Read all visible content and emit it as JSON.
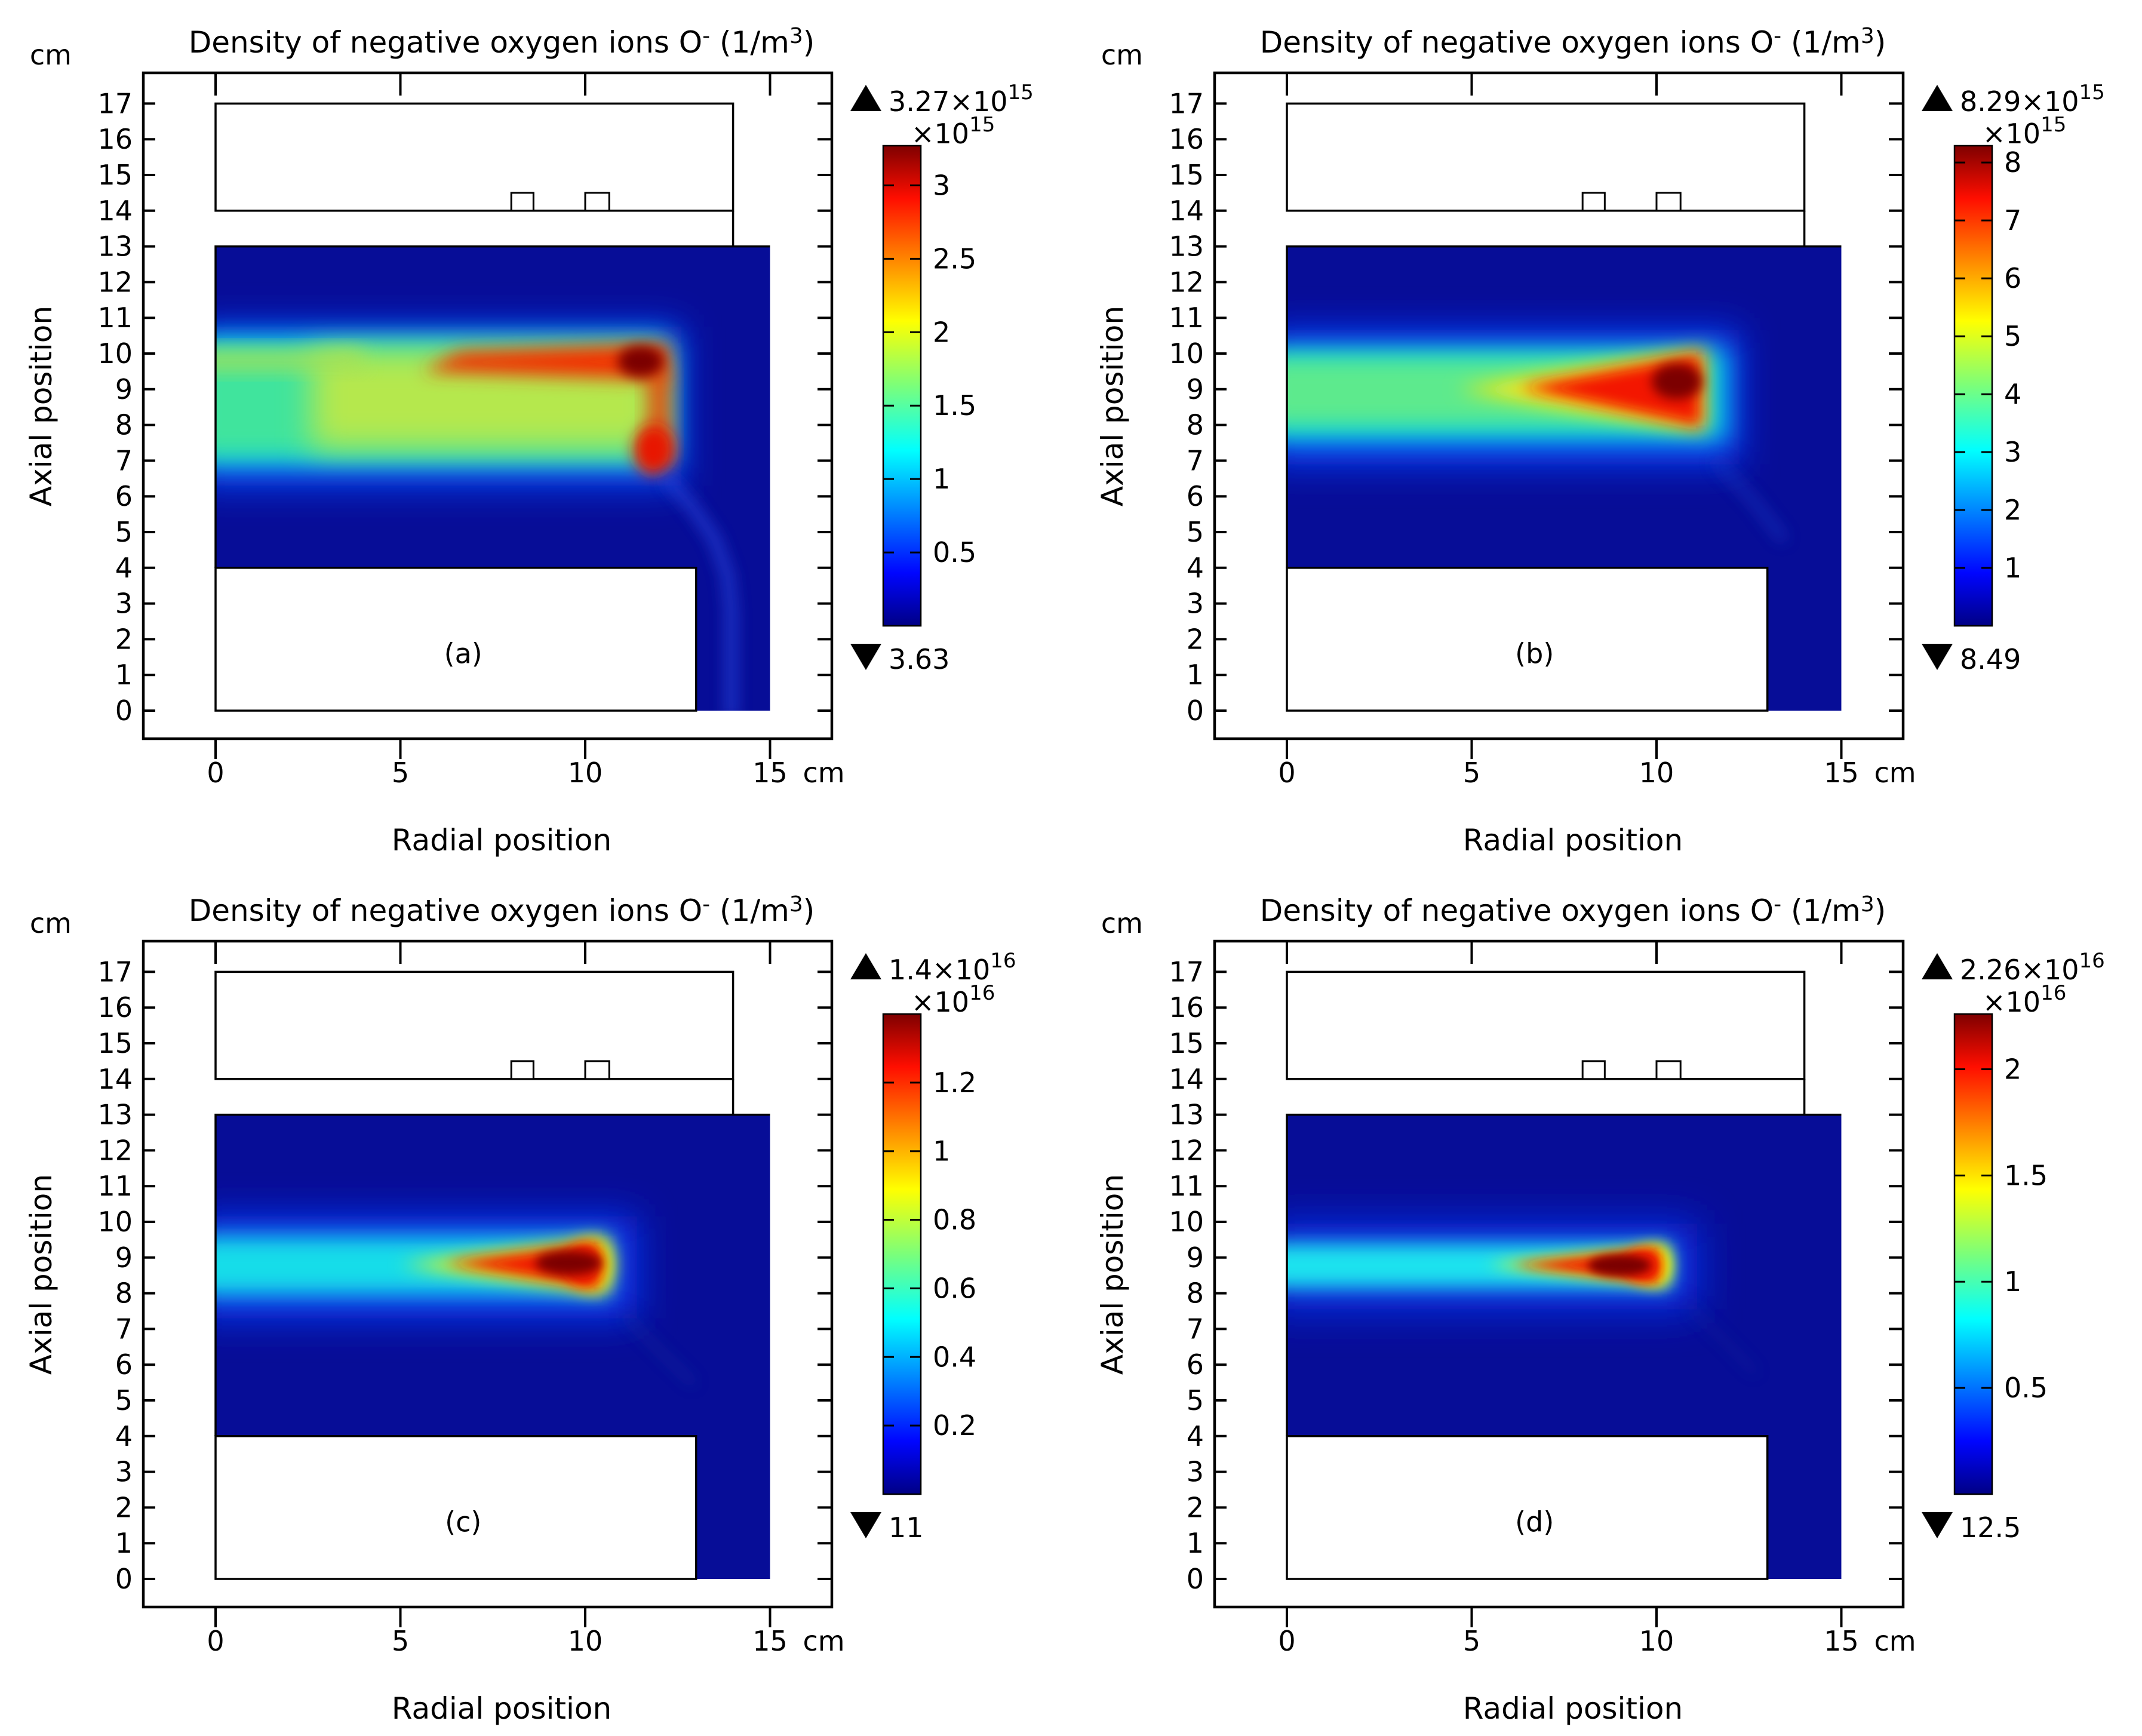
{
  "chart_data": {
    "type": "heatmap",
    "figure_kind": "2x2 panel COMSOL simulation surface plots",
    "shared": {
      "title_parts": [
        {
          "t": "Density of negative oxygen ions O"
        },
        {
          "t": "-",
          "sup": true
        },
        {
          "t": " (1/m"
        },
        {
          "t": "3",
          "sup": true
        },
        {
          "t": ")"
        }
      ],
      "xlabel": "Radial position",
      "ylabel": "Axial position",
      "x_unit": "cm",
      "y_unit": "cm",
      "x_ticks": [
        {
          "v": 0,
          "t": "0"
        },
        {
          "v": 5,
          "t": "5"
        },
        {
          "v": 10,
          "t": "10"
        },
        {
          "v": 15,
          "t": "15"
        }
      ],
      "y_ticks": [
        {
          "v": 0,
          "t": "0"
        },
        {
          "v": 1,
          "t": "1"
        },
        {
          "v": 2,
          "t": "2"
        },
        {
          "v": 3,
          "t": "3"
        },
        {
          "v": 4,
          "t": "4"
        },
        {
          "v": 5,
          "t": "5"
        },
        {
          "v": 6,
          "t": "6"
        },
        {
          "v": 7,
          "t": "7"
        },
        {
          "v": 8,
          "t": "8"
        },
        {
          "v": 9,
          "t": "9"
        },
        {
          "v": 10,
          "t": "10"
        },
        {
          "v": 11,
          "t": "11"
        },
        {
          "v": 12,
          "t": "12"
        },
        {
          "v": 13,
          "t": "13"
        },
        {
          "v": 14,
          "t": "14"
        },
        {
          "v": 15,
          "t": "15"
        },
        {
          "v": 16,
          "t": "16"
        },
        {
          "v": 17,
          "t": "17"
        }
      ],
      "x_range_cm": [
        0,
        15
      ],
      "y_range_cm": [
        0,
        17
      ],
      "grid": false,
      "base_color": "#070d97",
      "geometry": {
        "heatmap_region": {
          "x": [
            0,
            15
          ],
          "y": [
            0,
            13
          ]
        },
        "substrate_block": {
          "x": [
            0,
            13
          ],
          "y": [
            0,
            4
          ]
        },
        "chamber_box": {
          "x": [
            0,
            14
          ],
          "y": [
            14,
            17
          ]
        },
        "electrode_blocks": [
          {
            "x": [
              8.0,
              8.6
            ],
            "y": [
              14,
              14.5
            ]
          },
          {
            "x": [
              10.0,
              10.65
            ],
            "y": [
              14,
              14.5
            ]
          }
        ],
        "wall_segment": {
          "x": 14,
          "y": [
            13,
            14
          ]
        }
      },
      "colormap_stops": [
        [
          0,
          "#000085"
        ],
        [
          0.11,
          "#0005ff"
        ],
        [
          0.365,
          "#00ffff"
        ],
        [
          0.5,
          "#7bff7a"
        ],
        [
          0.635,
          "#ffff00"
        ],
        [
          0.89,
          "#ff0e00"
        ],
        [
          1,
          "#7f0000"
        ]
      ]
    },
    "panels": [
      {
        "id": "a",
        "letter": "(a)",
        "letter_pos_cm": [
          6.7,
          1.6
        ],
        "colorbar": {
          "max_marker": "triangle-up",
          "max_mantissa": "3.27×10",
          "max_exp": "15",
          "scale_mantissa": "×10",
          "scale_exp": "15",
          "min_marker": "triangle-down",
          "min_label": "3.63",
          "bar_max_value": 3.27,
          "ticks": [
            {
              "v": 0.5,
              "t": "0.5"
            },
            {
              "v": 1,
              "t": "1"
            },
            {
              "v": 1.5,
              "t": "1.5"
            },
            {
              "v": 2,
              "t": "2"
            },
            {
              "v": 2.5,
              "t": "2.5"
            },
            {
              "v": 3,
              "t": "3"
            }
          ]
        },
        "plume": [
          {
            "sh": "rect",
            "x1": -0.6,
            "y1": 6.3,
            "x2": 12.6,
            "y2": 10.75,
            "fill": "#0a45f5",
            "blur": 0.5
          },
          {
            "sh": "rect",
            "x1": -0.6,
            "y1": 6.9,
            "x2": 12.35,
            "y2": 10.45,
            "fill": "#00c8f0",
            "blur": 0.36
          },
          {
            "sh": "rect",
            "x1": -0.6,
            "y1": 7.1,
            "x2": 12.15,
            "y2": 10.2,
            "fill": "#3fe49d",
            "blur": 0.32
          },
          {
            "sh": "rect",
            "x1": 2.6,
            "y1": 7.35,
            "x2": 12.0,
            "y2": 10.05,
            "fill": "#b5e84e",
            "blur": 0.42
          },
          {
            "sh": "rect",
            "x1": -0.6,
            "y1": 9.55,
            "x2": 4.0,
            "y2": 10.1,
            "fill": "#a9e153",
            "blur": 0.28,
            "op": 0.9
          },
          {
            "sh": "poly",
            "pts": [
              [
                5.6,
                9.5
              ],
              [
                12.25,
                9.25
              ],
              [
                12.3,
                10.3
              ],
              [
                6.6,
                10.05
              ]
            ],
            "fill": "#f33000",
            "blur": 0.24
          },
          {
            "sh": "rect",
            "x1": 11.7,
            "y1": 7.0,
            "x2": 12.3,
            "y2": 9.6,
            "fill": "#f34400",
            "blur": 0.26,
            "op": 0.95
          },
          {
            "sh": "ellipse",
            "cx": 11.85,
            "cy": 7.3,
            "rx": 0.55,
            "ry": 0.7,
            "fill": "#e81500",
            "blur": 0.2
          },
          {
            "sh": "ellipse",
            "cx": 11.5,
            "cy": 9.78,
            "rx": 0.62,
            "ry": 0.44,
            "fill": "#7c0000",
            "blur": 0.17
          },
          {
            "sh": "line",
            "pts": [
              [
                12.25,
                6.45
              ],
              [
                12.9,
                5.7
              ],
              [
                13.5,
                4.8
              ],
              [
                13.85,
                3.8
              ],
              [
                13.95,
                2.8
              ],
              [
                13.95,
                -0.1
              ]
            ],
            "w": 0.28,
            "fill": "#2644dc",
            "blur": 0.2,
            "op": 0.8
          }
        ]
      },
      {
        "id": "b",
        "letter": "(b)",
        "letter_pos_cm": [
          6.7,
          1.6
        ],
        "colorbar": {
          "max_marker": "triangle-up",
          "max_mantissa": "8.29×10",
          "max_exp": "15",
          "scale_mantissa": "×10",
          "scale_exp": "15",
          "min_marker": "triangle-down",
          "min_label": "8.49",
          "bar_max_value": 8.29,
          "ticks": [
            {
              "v": 1,
              "t": "1"
            },
            {
              "v": 2,
              "t": "2"
            },
            {
              "v": 3,
              "t": "3"
            },
            {
              "v": 4,
              "t": "4"
            },
            {
              "v": 5,
              "t": "5"
            },
            {
              "v": 6,
              "t": "6"
            },
            {
              "v": 7,
              "t": "7"
            },
            {
              "v": 8,
              "t": "8"
            }
          ]
        },
        "plume": [
          {
            "sh": "rect",
            "x1": -0.6,
            "y1": 6.9,
            "x2": 12.25,
            "y2": 10.65,
            "fill": "#0a3cf5",
            "blur": 0.5
          },
          {
            "sh": "rect",
            "x1": -0.6,
            "y1": 7.55,
            "x2": 11.9,
            "y2": 10.15,
            "fill": "#00d2e4",
            "blur": 0.34
          },
          {
            "sh": "rect",
            "x1": -0.6,
            "y1": 7.95,
            "x2": 10.9,
            "y2": 9.9,
            "fill": "#5dea8d",
            "blur": 0.3
          },
          {
            "sh": "poly",
            "pts": [
              [
                4.6,
                9.0
              ],
              [
                11.35,
                7.8
              ],
              [
                11.35,
                10.15
              ]
            ],
            "fill": "#ffe80a",
            "blur": 0.26
          },
          {
            "sh": "poly",
            "pts": [
              [
                6.3,
                9.05
              ],
              [
                11.2,
                7.95
              ],
              [
                11.2,
                10.0
              ]
            ],
            "fill": "#f31400",
            "blur": 0.2
          },
          {
            "sh": "ellipse",
            "cx": 10.55,
            "cy": 9.22,
            "rx": 0.68,
            "ry": 0.5,
            "fill": "#7c0000",
            "blur": 0.16
          },
          {
            "sh": "line",
            "pts": [
              [
                11.65,
                6.95
              ],
              [
                12.6,
                5.9
              ],
              [
                13.4,
                4.85
              ]
            ],
            "w": 0.24,
            "fill": "#1d3ac4",
            "blur": 0.2,
            "op": 0.6
          }
        ]
      },
      {
        "id": "c",
        "letter": "(c)",
        "letter_pos_cm": [
          6.7,
          1.6
        ],
        "colorbar": {
          "max_marker": "triangle-up",
          "max_mantissa": "1.4×10",
          "max_exp": "16",
          "scale_mantissa": "×10",
          "scale_exp": "16",
          "min_marker": "triangle-down",
          "min_label": "11",
          "bar_max_value": 1.4,
          "ticks": [
            {
              "v": 0.2,
              "t": "0.2"
            },
            {
              "v": 0.4,
              "t": "0.4"
            },
            {
              "v": 0.6,
              "t": "0.6"
            },
            {
              "v": 0.8,
              "t": "0.8"
            },
            {
              "v": 1,
              "t": "1"
            },
            {
              "v": 1.2,
              "t": "1.2"
            }
          ]
        },
        "plume": [
          {
            "sh": "rect",
            "x1": -0.6,
            "y1": 7.3,
            "x2": 11.4,
            "y2": 10.15,
            "fill": "#0a38f0",
            "blur": 0.5
          },
          {
            "sh": "rect",
            "x1": -0.6,
            "y1": 7.95,
            "x2": 10.65,
            "y2": 9.6,
            "fill": "#12dde9",
            "blur": 0.3
          },
          {
            "sh": "poly",
            "pts": [
              [
                5.0,
                8.8
              ],
              [
                10.6,
                8.0
              ],
              [
                10.6,
                9.55
              ]
            ],
            "fill": "#f6f402",
            "blur": 0.24
          },
          {
            "sh": "ellipse",
            "cx": 10.15,
            "cy": 8.8,
            "rx": 0.6,
            "ry": 0.68,
            "fill": "#f6f402",
            "blur": 0.24
          },
          {
            "sh": "poly",
            "pts": [
              [
                6.2,
                8.85
              ],
              [
                10.35,
                8.15
              ],
              [
                10.35,
                9.4
              ]
            ],
            "fill": "#f11300",
            "blur": 0.18
          },
          {
            "sh": "ellipse",
            "cx": 9.95,
            "cy": 8.8,
            "rx": 0.5,
            "ry": 0.55,
            "fill": "#f11300",
            "blur": 0.18
          },
          {
            "sh": "ellipse",
            "cx": 9.55,
            "cy": 8.85,
            "rx": 0.9,
            "ry": 0.34,
            "fill": "#7c0000",
            "blur": 0.14
          },
          {
            "sh": "line",
            "pts": [
              [
                11.1,
                7.35
              ],
              [
                12.1,
                6.3
              ],
              [
                12.9,
                5.5
              ]
            ],
            "w": 0.2,
            "fill": "#16309e",
            "blur": 0.2,
            "op": 0.45
          }
        ]
      },
      {
        "id": "d",
        "letter": "(d)",
        "letter_pos_cm": [
          6.7,
          1.6
        ],
        "colorbar": {
          "max_marker": "triangle-up",
          "max_mantissa": "2.26×10",
          "max_exp": "16",
          "scale_mantissa": "×10",
          "scale_exp": "16",
          "min_marker": "triangle-down",
          "min_label": "12.5",
          "bar_max_value": 2.26,
          "ticks": [
            {
              "v": 0.5,
              "t": "0.5"
            },
            {
              "v": 1,
              "t": "1"
            },
            {
              "v": 1.5,
              "t": "1.5"
            },
            {
              "v": 2,
              "t": "2"
            }
          ]
        },
        "plume": [
          {
            "sh": "rect",
            "x1": -0.6,
            "y1": 7.55,
            "x2": 11.1,
            "y2": 9.95,
            "fill": "#0a31e8",
            "blur": 0.55
          },
          {
            "sh": "rect",
            "x1": -0.6,
            "y1": 8.15,
            "x2": 10.4,
            "y2": 9.4,
            "fill": "#1fe3ee",
            "blur": 0.26
          },
          {
            "sh": "poly",
            "pts": [
              [
                5.4,
                8.8
              ],
              [
                10.3,
                8.2
              ],
              [
                10.3,
                9.35
              ]
            ],
            "fill": "#f6f402",
            "blur": 0.2
          },
          {
            "sh": "ellipse",
            "cx": 9.85,
            "cy": 8.78,
            "rx": 0.55,
            "ry": 0.52,
            "fill": "#f6f402",
            "blur": 0.2
          },
          {
            "sh": "poly",
            "pts": [
              [
                6.1,
                8.8
              ],
              [
                10.05,
                8.3
              ],
              [
                10.05,
                9.25
              ]
            ],
            "fill": "#f11300",
            "blur": 0.16
          },
          {
            "sh": "ellipse",
            "cx": 9.6,
            "cy": 8.78,
            "rx": 0.5,
            "ry": 0.42,
            "fill": "#f11300",
            "blur": 0.16
          },
          {
            "sh": "ellipse",
            "cx": 9.0,
            "cy": 8.78,
            "rx": 0.85,
            "ry": 0.3,
            "fill": "#7c0000",
            "blur": 0.12
          },
          {
            "sh": "line",
            "pts": [
              [
                10.9,
                7.6
              ],
              [
                11.9,
                6.6
              ],
              [
                12.65,
                5.8
              ]
            ],
            "w": 0.18,
            "fill": "#16309e",
            "blur": 0.2,
            "op": 0.3
          }
        ]
      }
    ]
  }
}
